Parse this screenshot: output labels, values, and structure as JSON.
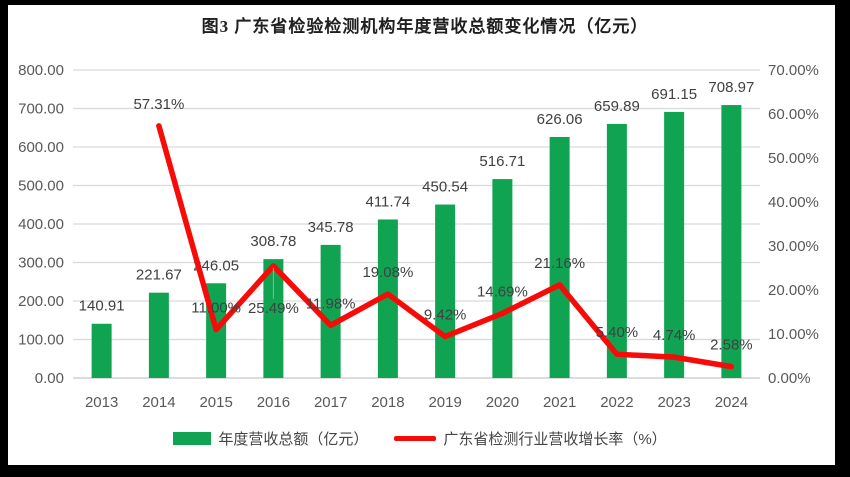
{
  "title": "图3 广东省检验检测机构年度营收总额变化情况（亿元）",
  "legend": {
    "bar_label": "年度营收总额（亿元）",
    "line_label": "广东省检测行业营收增长率（%）"
  },
  "colors": {
    "bar": "#10A452",
    "line": "#F70B08",
    "grid": "#D9D9D9",
    "axis_line": "#C6C6C6",
    "tick_text": "#595959",
    "data_label": "#404040",
    "leader_line": "#A6A6A6",
    "frame": "#000000",
    "background": "#FFFFFF"
  },
  "chart_data": {
    "type": "combo bar+line",
    "title": "图3 广东省检验检测机构年度营收总额变化情况（亿元）",
    "categories": [
      "2013",
      "2014",
      "2015",
      "2016",
      "2017",
      "2018",
      "2019",
      "2020",
      "2021",
      "2022",
      "2023",
      "2024"
    ],
    "series": [
      {
        "name": "年度营收总额（亿元）",
        "type": "bar",
        "axis": "left",
        "values": [
          140.91,
          221.67,
          246.05,
          308.78,
          345.78,
          411.74,
          450.54,
          516.71,
          626.06,
          659.89,
          691.15,
          708.97
        ]
      },
      {
        "name": "广东省检测行业营收增长率（%）",
        "type": "line",
        "axis": "right",
        "values": [
          null,
          57.31,
          11.0,
          25.49,
          11.98,
          19.08,
          9.42,
          14.69,
          21.16,
          5.4,
          4.74,
          2.58
        ]
      }
    ],
    "left_axis": {
      "min": 0,
      "max": 800,
      "step": 100,
      "ticks": [
        "800.00",
        "700.00",
        "600.00",
        "500.00",
        "400.00",
        "300.00",
        "200.00",
        "100.00",
        "0.00"
      ]
    },
    "right_axis": {
      "min": 0,
      "max": 70,
      "step": 10,
      "ticks": [
        "70.00%",
        "60.00%",
        "50.00%",
        "40.00%",
        "30.00%",
        "20.00%",
        "10.00%",
        "0.00%"
      ]
    },
    "grid": true,
    "data_labels": true,
    "legend_position": "bottom",
    "label_below_categories": [
      "2016"
    ]
  }
}
